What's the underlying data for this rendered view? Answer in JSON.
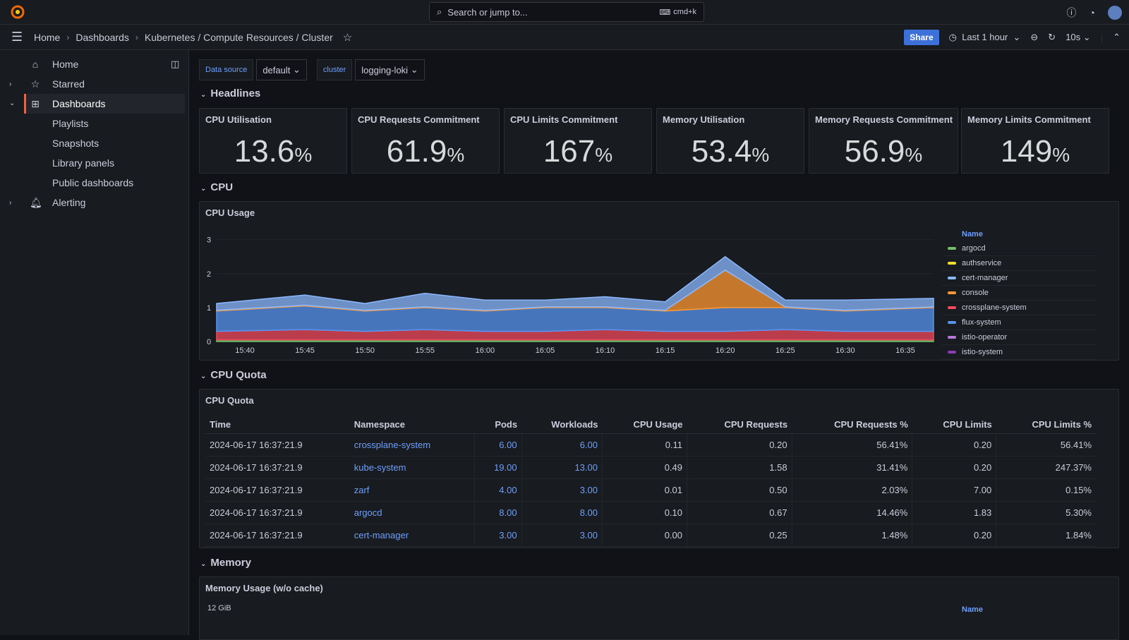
{
  "topbar": {
    "search_placeholder": "Search or jump to...",
    "search_shortcut": "cmd+k"
  },
  "navbar": {
    "breadcrumb": [
      "Home",
      "Dashboards",
      "Kubernetes / Compute Resources / Cluster"
    ],
    "share_label": "Share",
    "time_range": "Last 1 hour",
    "refresh_interval": "10s"
  },
  "sidebar": {
    "items": [
      {
        "label": "Home",
        "icon": "home-icon"
      },
      {
        "label": "Starred",
        "icon": "star-icon"
      },
      {
        "label": "Dashboards",
        "icon": "grid-icon"
      },
      {
        "label": "Playlists"
      },
      {
        "label": "Snapshots"
      },
      {
        "label": "Library panels"
      },
      {
        "label": "Public dashboards"
      },
      {
        "label": "Alerting",
        "icon": "bell-icon"
      }
    ]
  },
  "variables": {
    "datasource_label": "Data source",
    "datasource_value": "default",
    "cluster_label": "cluster",
    "cluster_value": "logging-loki"
  },
  "rows": {
    "headlines": "Headlines",
    "cpu": "CPU",
    "cpu_quota": "CPU Quota",
    "memory": "Memory"
  },
  "stats": [
    {
      "title": "CPU Utilisation",
      "value": "13.6",
      "unit": "%"
    },
    {
      "title": "CPU Requests Commitment",
      "value": "61.9",
      "unit": "%"
    },
    {
      "title": "CPU Limits Commitment",
      "value": "167",
      "unit": "%"
    },
    {
      "title": "Memory Utilisation",
      "value": "53.4",
      "unit": "%"
    },
    {
      "title": "Memory Requests Commitment",
      "value": "56.9",
      "unit": "%"
    },
    {
      "title": "Memory Limits Commitment",
      "value": "149",
      "unit": "%"
    }
  ],
  "cpu_usage_panel": {
    "title": "CPU Usage",
    "legend_header": "Name",
    "legend": [
      {
        "name": "argocd",
        "color": "#73bf69"
      },
      {
        "name": "authservice",
        "color": "#fade2a"
      },
      {
        "name": "cert-manager",
        "color": "#8ab8ff"
      },
      {
        "name": "console",
        "color": "#ff9830"
      },
      {
        "name": "crossplane-system",
        "color": "#f2495c"
      },
      {
        "name": "flux-system",
        "color": "#5794f2"
      },
      {
        "name": "istio-operator",
        "color": "#b877d9"
      },
      {
        "name": "istio-system",
        "color": "#8f3bb8"
      }
    ]
  },
  "chart_data": {
    "type": "area",
    "title": "CPU Usage",
    "x": [
      "15:40",
      "15:45",
      "15:50",
      "15:55",
      "16:00",
      "16:05",
      "16:10",
      "16:15",
      "16:20",
      "16:25",
      "16:30",
      "16:35"
    ],
    "y_ticks": [
      "0",
      "1",
      "2",
      "3"
    ],
    "ylim": [
      0,
      3.2
    ],
    "series": [
      {
        "name": "argocd",
        "values": [
          0.05,
          0.05,
          0.05,
          0.05,
          0.05,
          0.05,
          0.05,
          0.05,
          0.05,
          0.05,
          0.05,
          0.05
        ]
      },
      {
        "name": "crossplane-system",
        "values": [
          0.25,
          0.3,
          0.25,
          0.3,
          0.25,
          0.25,
          0.3,
          0.25,
          0.25,
          0.3,
          0.25,
          0.25
        ]
      },
      {
        "name": "flux-system",
        "values": [
          0.6,
          0.7,
          0.6,
          0.65,
          0.6,
          0.7,
          0.65,
          0.6,
          0.7,
          0.65,
          0.6,
          0.7
        ]
      },
      {
        "name": "console",
        "values": [
          0.02,
          0.02,
          0.02,
          0.02,
          0.02,
          0.02,
          0.02,
          0.02,
          1.1,
          0.02,
          0.02,
          0.02
        ]
      },
      {
        "name": "cert-manager",
        "values": [
          0.2,
          0.3,
          0.2,
          0.4,
          0.3,
          0.2,
          0.3,
          0.25,
          0.4,
          0.2,
          0.3,
          0.25
        ]
      }
    ],
    "legend_position": "right"
  },
  "cpu_quota_panel": {
    "title": "CPU Quota",
    "columns": [
      "Time",
      "Namespace",
      "Pods",
      "Workloads",
      "CPU Usage",
      "CPU Requests",
      "CPU Requests %",
      "CPU Limits",
      "CPU Limits %"
    ],
    "rows": [
      [
        "2024-06-17 16:37:21.9",
        "crossplane-system",
        "6.00",
        "6.00",
        "0.11",
        "0.20",
        "56.41%",
        "0.20",
        "56.41%"
      ],
      [
        "2024-06-17 16:37:21.9",
        "kube-system",
        "19.00",
        "13.00",
        "0.49",
        "1.58",
        "31.41%",
        "0.20",
        "247.37%"
      ],
      [
        "2024-06-17 16:37:21.9",
        "zarf",
        "4.00",
        "3.00",
        "0.01",
        "0.50",
        "2.03%",
        "7.00",
        "0.15%"
      ],
      [
        "2024-06-17 16:37:21.9",
        "argocd",
        "8.00",
        "8.00",
        "0.10",
        "0.67",
        "14.46%",
        "1.83",
        "5.30%"
      ],
      [
        "2024-06-17 16:37:21.9",
        "cert-manager",
        "3.00",
        "3.00",
        "0.00",
        "0.25",
        "1.48%",
        "0.20",
        "1.84%"
      ]
    ]
  },
  "memory_panel": {
    "title": "Memory Usage (w/o cache)",
    "y_top": "12 GiB",
    "legend_header": "Name"
  }
}
